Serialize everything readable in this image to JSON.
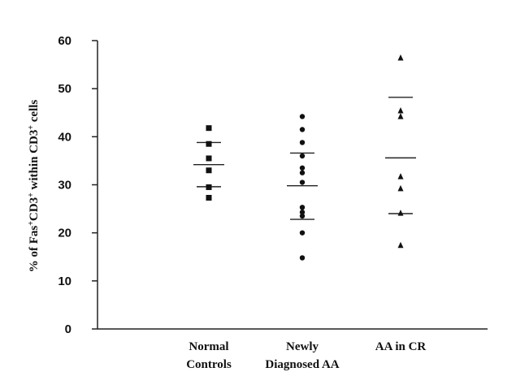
{
  "chart_data": {
    "type": "scatter",
    "ylabel": {
      "parts": [
        {
          "text": "% of Fas",
          "sup": false
        },
        {
          "text": "+",
          "sup": true
        },
        {
          "text": "CD3",
          "sup": false
        },
        {
          "text": "+",
          "sup": true
        },
        {
          "text": " within CD3",
          "sup": false
        },
        {
          "text": "+",
          "sup": true
        },
        {
          "text": " cells",
          "sup": false
        }
      ]
    },
    "ylim": [
      0,
      60
    ],
    "yticks": [
      "0",
      "10",
      "20",
      "30",
      "40",
      "50",
      "60"
    ],
    "categories": [
      {
        "lines": [
          "Normal",
          "Controls"
        ]
      },
      {
        "lines": [
          "Newly",
          "Diagnosed AA"
        ]
      },
      {
        "lines": [
          "AA in CR"
        ]
      }
    ],
    "series": [
      {
        "category_index": 0,
        "marker": "square",
        "values": [
          41.8,
          38.5,
          35.5,
          33,
          29.5,
          27.3
        ],
        "mean": 34.2,
        "sd_upper": 38.8,
        "sd_lower": 29.6
      },
      {
        "category_index": 1,
        "marker": "circle",
        "values": [
          44.2,
          41.5,
          38.8,
          36,
          33.5,
          32.5,
          30.5,
          25.3,
          24.3,
          23.5,
          20,
          14.8
        ],
        "mean": 29.8,
        "sd_upper": 36.6,
        "sd_lower": 22.8
      },
      {
        "category_index": 2,
        "marker": "triangle",
        "values": [
          56.5,
          45.5,
          44.3,
          31.8,
          29.3,
          24.2,
          17.5
        ],
        "mean": 35.6,
        "sd_upper": 48.2,
        "sd_lower": 24
      }
    ],
    "grid": false,
    "legend": "none"
  }
}
